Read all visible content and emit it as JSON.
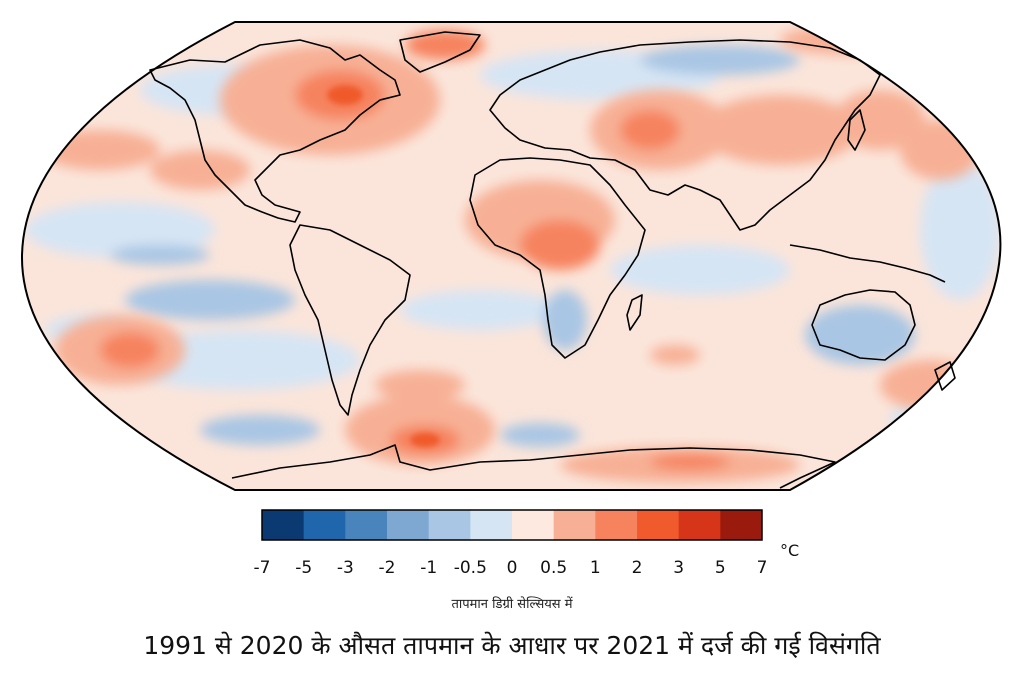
{
  "title": "1991 से 2020 के औसत तापमान के आधार पर 2021 में दर्ज की गई विसंगति",
  "legend": {
    "caption": "तापमान डिग्री सेल्सियस में",
    "unit": "°C",
    "ticks": [
      "-7",
      "-5",
      "-3",
      "-2",
      "-1",
      "-0.5",
      "0",
      "0.5",
      "1",
      "2",
      "3",
      "5",
      "7"
    ],
    "colors": [
      "#0b3a72",
      "#2066ad",
      "#4a84bd",
      "#7ea7d2",
      "#a9c6e4",
      "#d6e5f4",
      "#fde9e0",
      "#f7b095",
      "#f6835e",
      "#f05a2c",
      "#d6351a",
      "#9a1a0e"
    ]
  },
  "map": {
    "projection": "Robinson",
    "ocean_base_color": "#fbe5da",
    "coastline_color": "#000000"
  }
}
